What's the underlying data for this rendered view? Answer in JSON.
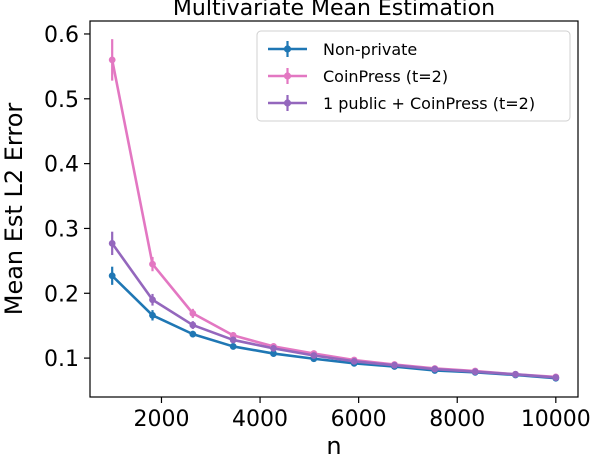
{
  "chart_data": {
    "type": "line",
    "title": "Multivariate Mean Estimation",
    "xlabel": "n",
    "ylabel": "Mean Est L2 Error",
    "xlim": [
      550,
      10450
    ],
    "ylim": [
      0.04,
      0.62
    ],
    "xticks": [
      2000,
      4000,
      6000,
      8000,
      10000
    ],
    "yticks": [
      0.1,
      0.2,
      0.3,
      0.4,
      0.5,
      0.6
    ],
    "grid": false,
    "legend_position": "upper right",
    "x": [
      1000,
      1818,
      2636,
      3455,
      4273,
      5091,
      5909,
      6727,
      7545,
      8364,
      9182,
      10000
    ],
    "series": [
      {
        "name": "Non-private",
        "color": "#1f77b4",
        "values": [
          0.227,
          0.166,
          0.137,
          0.118,
          0.107,
          0.099,
          0.092,
          0.087,
          0.081,
          0.078,
          0.074,
          0.069
        ],
        "errors": [
          0.014,
          0.008,
          0.005,
          0.004,
          0.004,
          0.003,
          0.003,
          0.003,
          0.002,
          0.002,
          0.002,
          0.002
        ]
      },
      {
        "name": "CoinPress (t=2)",
        "color": "#e377c2",
        "values": [
          0.56,
          0.245,
          0.169,
          0.135,
          0.118,
          0.107,
          0.097,
          0.09,
          0.084,
          0.08,
          0.075,
          0.071
        ],
        "errors": [
          0.032,
          0.011,
          0.007,
          0.005,
          0.004,
          0.004,
          0.003,
          0.003,
          0.003,
          0.002,
          0.002,
          0.002
        ]
      },
      {
        "name": "1 public + CoinPress (t=2)",
        "color": "#9467bd",
        "values": [
          0.277,
          0.19,
          0.151,
          0.128,
          0.115,
          0.104,
          0.095,
          0.089,
          0.083,
          0.079,
          0.075,
          0.07
        ],
        "errors": [
          0.018,
          0.009,
          0.006,
          0.005,
          0.004,
          0.003,
          0.003,
          0.003,
          0.002,
          0.002,
          0.002,
          0.002
        ]
      }
    ]
  }
}
